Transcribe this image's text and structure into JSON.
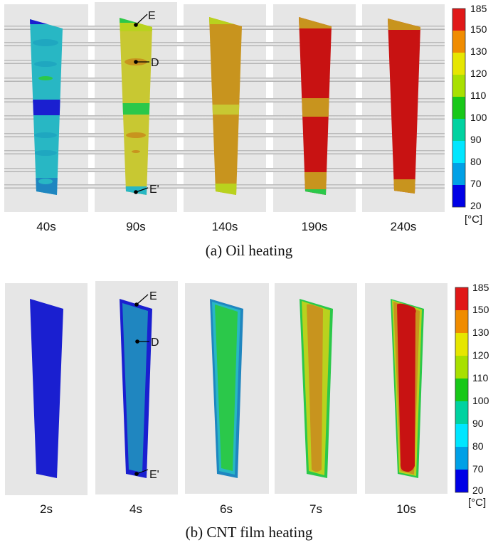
{
  "section_a": {
    "caption": "(a) Oil heating",
    "times": [
      "40s",
      "90s",
      "140s",
      "190s",
      "240s"
    ],
    "markers": {
      "top": "E",
      "middle": "D",
      "bottom": "E'"
    }
  },
  "section_b": {
    "caption": "(b) CNT film heating",
    "times": [
      "2s",
      "4s",
      "6s",
      "7s",
      "10s"
    ],
    "markers": {
      "top": "E",
      "middle": "D",
      "bottom": "E'"
    }
  },
  "legend": {
    "unit": "[°C]",
    "ticks": [
      "185",
      "150",
      "130",
      "120",
      "110",
      "100",
      "90",
      "80",
      "70",
      "20"
    ],
    "colors": [
      "#e01818",
      "#f08c00",
      "#e6e600",
      "#a8e000",
      "#18c818",
      "#00d2a0",
      "#00e6ff",
      "#00a0e6",
      "#0000e6"
    ]
  },
  "palette": {
    "deep_blue": "#1a1fd0",
    "steel_blue": "#1f86c0",
    "teal": "#28b7c4",
    "green": "#2bc84a",
    "yellow_green": "#b9d21e",
    "olive_yellow": "#c8c832",
    "brown_orange": "#c8941e",
    "dark_red": "#c81212"
  }
}
